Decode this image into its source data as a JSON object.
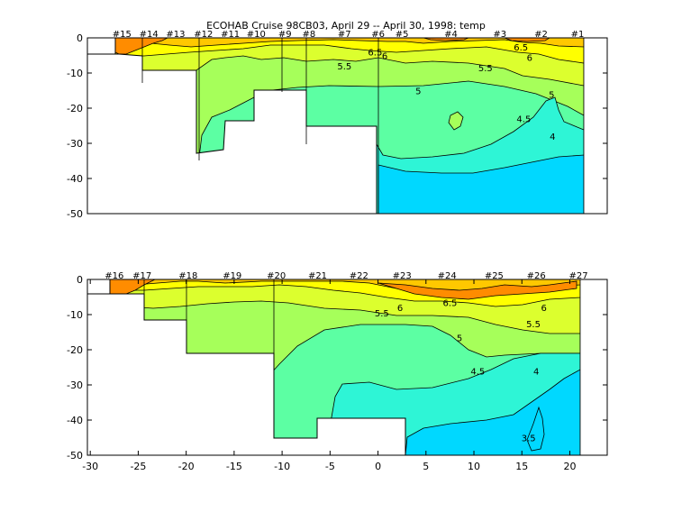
{
  "chart_data": {
    "title": "ECOHAB Cruise 98CB03, April 29 -- April 30, 1998: temp",
    "type": "filled-contour",
    "colors": {
      "3.5": "#00d8ff",
      "4": "#2ef5d6",
      "4.5": "#5cffa3",
      "5": "#a6ff5a",
      "5.5": "#dcff2e",
      "6": "#ffff00",
      "6.5": "#ffc800",
      "7": "#ff8c00",
      "land": "#ffffff"
    },
    "panels": [
      {
        "xlim": [
          -28,
          21
        ],
        "ylim": [
          -50,
          0
        ],
        "yticks": [
          0,
          -10,
          -20,
          -30,
          -40,
          -50
        ],
        "xticks": [],
        "stations": [
          {
            "label": "#15",
            "x": -26.7
          },
          {
            "label": "#14",
            "x": -23.9
          },
          {
            "label": "#13",
            "x": -21.1
          },
          {
            "label": "#12",
            "x": -18.2
          },
          {
            "label": "#11",
            "x": -15.4
          },
          {
            "label": "#10",
            "x": -12.7
          },
          {
            "label": "#9",
            "x": -9.7
          },
          {
            "label": "#8",
            "x": -7.2
          },
          {
            "label": "#7",
            "x": -3.5
          },
          {
            "label": "#6",
            "x": 0.0
          },
          {
            "label": "#5",
            "x": 2.5
          },
          {
            "label": "#4",
            "x": 7.6
          },
          {
            "label": "#3",
            "x": 12.7
          },
          {
            "label": "#2",
            "x": 17.0
          },
          {
            "label": "#1",
            "x": 20.8
          }
        ],
        "bathymetry": [
          [
            -27.8,
            -5
          ],
          [
            -24.6,
            -5
          ],
          [
            -24.6,
            -9
          ],
          [
            -18.5,
            -9
          ],
          [
            -18.5,
            -32
          ],
          [
            -15.6,
            -31
          ],
          [
            -15.6,
            -23
          ],
          [
            -12.9,
            -23
          ],
          [
            -12.9,
            -15
          ],
          [
            -7.7,
            -15
          ],
          [
            -7.7,
            -25
          ],
          [
            0,
            -25
          ],
          [
            0,
            -50
          ]
        ],
        "contour_labels": [
          {
            "text": "6.5",
            "x": -0.3,
            "y": -4.0
          },
          {
            "text": "6",
            "x": 0.7,
            "y": -5.0
          },
          {
            "text": "5.5",
            "x": -3.5,
            "y": -8.0
          },
          {
            "text": "5",
            "x": 4.2,
            "y": -15.0
          },
          {
            "text": "5.5",
            "x": 11.2,
            "y": -8.5
          },
          {
            "text": "6.5",
            "x": 14.9,
            "y": -2.5
          },
          {
            "text": "6",
            "x": 15.8,
            "y": -5.5
          },
          {
            "text": "5",
            "x": 18.1,
            "y": -16.0
          },
          {
            "text": "4.5",
            "x": 15.2,
            "y": -23.0
          },
          {
            "text": "4",
            "x": 18.2,
            "y": -28.0
          }
        ]
      },
      {
        "xlim": [
          -30,
          23
        ],
        "ylim": [
          -50,
          0
        ],
        "yticks": [
          0,
          -10,
          -20,
          -30,
          -40,
          -50
        ],
        "xticks": [
          -30,
          -25,
          -20,
          -15,
          -10,
          -5,
          0,
          5,
          10,
          15,
          20
        ],
        "stations": [
          {
            "label": "#16",
            "x": -27.5
          },
          {
            "label": "#17",
            "x": -24.6
          },
          {
            "label": "#18",
            "x": -19.8
          },
          {
            "label": "#19",
            "x": -15.2
          },
          {
            "label": "#20",
            "x": -10.6
          },
          {
            "label": "#21",
            "x": -6.3
          },
          {
            "label": "#22",
            "x": -2.0
          },
          {
            "label": "#23",
            "x": 2.5
          },
          {
            "label": "#24",
            "x": 7.2
          },
          {
            "label": "#25",
            "x": 12.1
          },
          {
            "label": "#26",
            "x": 16.5
          },
          {
            "label": "#27",
            "x": 20.9
          }
        ],
        "bathymetry": [
          [
            -27.8,
            -4
          ],
          [
            -24.3,
            -4
          ],
          [
            -24.3,
            -11
          ],
          [
            -19.9,
            -11
          ],
          [
            -19.9,
            -21
          ],
          [
            -10.7,
            -21
          ],
          [
            -10.7,
            -45
          ],
          [
            -6.3,
            -45
          ],
          [
            -6.3,
            -39
          ],
          [
            2.8,
            -39
          ],
          [
            2.8,
            -50
          ]
        ],
        "contour_labels": [
          {
            "text": "6.5",
            "x": 7.5,
            "y": -6.5
          },
          {
            "text": "6",
            "x": 2.3,
            "y": -8.0
          },
          {
            "text": "5.5",
            "x": 0.4,
            "y": -9.5
          },
          {
            "text": "6",
            "x": 17.3,
            "y": -8.0
          },
          {
            "text": "5.5",
            "x": 16.2,
            "y": -12.5
          },
          {
            "text": "5",
            "x": 8.5,
            "y": -16.5
          },
          {
            "text": "4.5",
            "x": 10.4,
            "y": -26.0
          },
          {
            "text": "4",
            "x": 16.5,
            "y": -26.0
          },
          {
            "text": "3.5",
            "x": 15.7,
            "y": -45.0
          }
        ]
      }
    ]
  }
}
